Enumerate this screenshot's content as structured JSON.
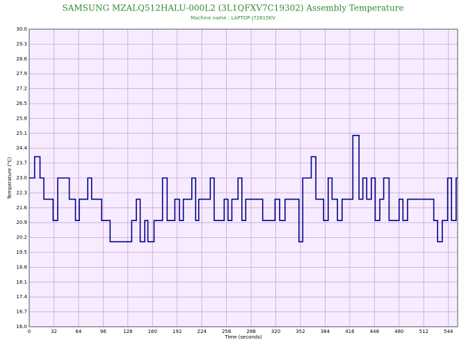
{
  "chart_data": {
    "type": "line",
    "title": "SAMSUNG MZALQ512HALU-000L2 (3L1QFXV7C19302) Assembly Temperature",
    "subtitle": "Machine name : LAPTOP-J72815KV",
    "x_label": "Time (seconds)",
    "y_label": "Temperature (°C)",
    "step": true,
    "grid": true,
    "series": [
      {
        "name": "Assembly Temperature",
        "color": "#00008b",
        "x": [
          0,
          7,
          14,
          19,
          31,
          37,
          52,
          60,
          65,
          76,
          81,
          94,
          105,
          133,
          139,
          144,
          150,
          154,
          162,
          173,
          179,
          189,
          195,
          200,
          211,
          216,
          220,
          235,
          240,
          253,
          258,
          263,
          271,
          276,
          281,
          303,
          319,
          325,
          332,
          350,
          355,
          366,
          372,
          382,
          388,
          393,
          400,
          406,
          420,
          428,
          433,
          438,
          444,
          449,
          455,
          460,
          467,
          480,
          485,
          491,
          525,
          530,
          536,
          543,
          548,
          554
        ],
        "values": [
          23,
          24,
          23,
          22,
          21,
          23,
          22,
          21,
          22,
          23,
          22,
          21,
          20,
          21,
          22,
          20,
          21,
          20,
          21,
          23,
          21,
          22,
          21,
          22,
          23,
          21,
          22,
          23,
          21,
          22,
          21,
          22,
          23,
          21,
          22,
          21,
          22,
          21,
          22,
          20,
          23,
          24,
          22,
          21,
          23,
          22,
          21,
          22,
          25,
          22,
          23,
          22,
          23,
          21,
          22,
          23,
          21,
          22,
          21,
          22,
          21,
          20,
          21,
          23,
          21,
          23
        ]
      }
    ],
    "xlim": [
      0,
      556
    ],
    "xticks": [
      0,
      32,
      64,
      96,
      128,
      160,
      192,
      224,
      256,
      288,
      320,
      352,
      384,
      416,
      448,
      480,
      512,
      544
    ],
    "ylim": [
      16,
      30
    ],
    "yticks": [
      {
        "value": 16,
        "label": "16.0"
      },
      16.7,
      17.4,
      18.1,
      18.8,
      19.5,
      20.2,
      20.9,
      21.6,
      22.3,
      {
        "value": 23,
        "label": "23.0"
      },
      23.7,
      24.4,
      25.1,
      25.8,
      26.5,
      27.2,
      27.9,
      28.6,
      29.3,
      {
        "value": 30,
        "label": "30.0"
      }
    ]
  }
}
